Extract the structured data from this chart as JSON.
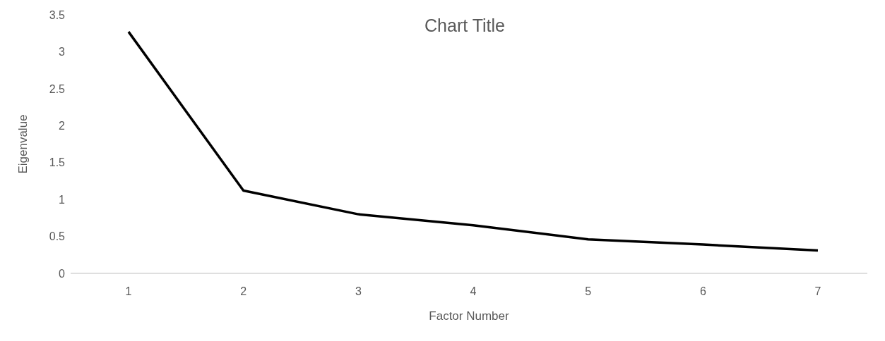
{
  "chart_data": {
    "type": "line",
    "title": "Chart Title",
    "xlabel": "Factor Number",
    "ylabel": "Eigenvalue",
    "categories": [
      "1",
      "2",
      "3",
      "4",
      "5",
      "6",
      "7"
    ],
    "series": [
      {
        "color": "#000000",
        "values": [
          3.27,
          1.12,
          0.8,
          0.65,
          0.46,
          0.39,
          0.31
        ]
      }
    ],
    "ylim": [
      0,
      3.5
    ],
    "yticks": [
      0,
      0.5,
      1,
      1.5,
      2,
      2.5,
      3,
      3.5
    ],
    "grid": false,
    "legend": false,
    "marker": "none",
    "line_style": "solid"
  }
}
